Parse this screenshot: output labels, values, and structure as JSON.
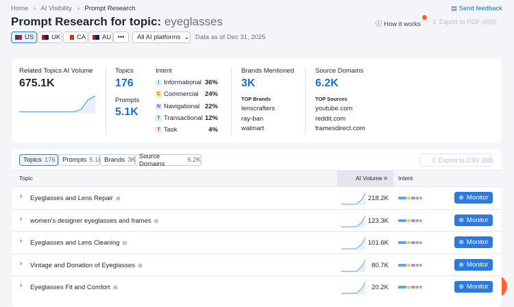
{
  "breadcrumb": [
    "Home",
    "AI Visibility",
    "Prompt Research"
  ],
  "header": {
    "title": "Prompt Research for topic:",
    "topic": "eyeglasses",
    "send_feedback": "Send feedback",
    "how_it_works": "How it works",
    "export_pdf": "Export to PDF"
  },
  "filters": {
    "countries": [
      "US",
      "UK",
      "CA",
      "AU"
    ],
    "platform": "All AI platforms",
    "data_as_of": "Data as of Dec 31, 2025"
  },
  "summary": {
    "volume": {
      "label": "Related Topics AI Volume",
      "value": "675.1K"
    },
    "topics": {
      "label": "Topics",
      "value": "176"
    },
    "prompts": {
      "label": "Prompts",
      "value": "5.1K"
    },
    "intent": {
      "label": "Intent",
      "items": [
        {
          "letter": "I",
          "name": "Informational",
          "pct": "36%"
        },
        {
          "letter": "C",
          "name": "Commercial",
          "pct": "24%"
        },
        {
          "letter": "N",
          "name": "Navigational",
          "pct": "22%"
        },
        {
          "letter": "T",
          "name": "Transactional",
          "pct": "12%"
        },
        {
          "letter": "T",
          "name": "Task",
          "pct": "4%"
        }
      ]
    },
    "brands": {
      "label": "Brands Mentioned",
      "value": "3K",
      "top_label": "TOP Brands",
      "top": [
        "lenscrafters",
        "ray-ban",
        "walmart"
      ]
    },
    "domains": {
      "label": "Source Domains",
      "value": "6.2K",
      "top_label": "TOP Sources",
      "top": [
        "youtube.com",
        "reddit.com",
        "framesdirect.com"
      ]
    }
  },
  "tabs": [
    {
      "name": "Topics",
      "count": "176"
    },
    {
      "name": "Prompts",
      "count": "5.1K"
    },
    {
      "name": "Brands",
      "count": "3K"
    },
    {
      "name": "Source Domains",
      "count": "6.2K"
    }
  ],
  "export_csv": "Export to CSV",
  "table": {
    "columns": [
      "Topic",
      "AI Volume",
      "Intent"
    ],
    "rows": [
      {
        "topic": "Eyeglasses and Lens Repair",
        "volume": "218.2K",
        "action": "Monitor"
      },
      {
        "topic": "women's designer eyeglasses and frames",
        "volume": "123.3K",
        "action": "Monitor"
      },
      {
        "topic": "Eyeglasses and Lens Cleaning",
        "volume": "101.6K",
        "action": "Monitor"
      },
      {
        "topic": "Vintage and Donation of Eyeglasses",
        "volume": "80.7K",
        "action": "Monitor"
      },
      {
        "topic": "Eyeglasses Fit and Comfort",
        "volume": "20.2K",
        "action": "Monitor"
      }
    ]
  }
}
